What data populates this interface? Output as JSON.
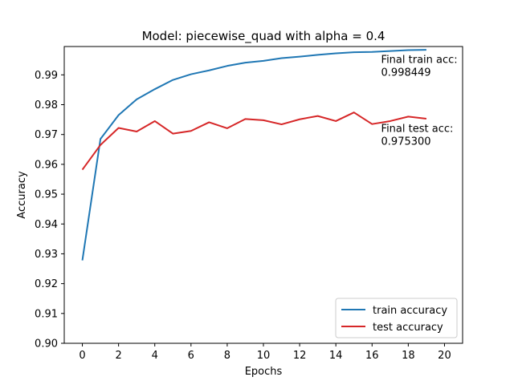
{
  "chart_data": {
    "type": "line",
    "title": "Model: piecewise_quad with alpha = 0.4",
    "xlabel": "Epochs",
    "ylabel": "Accuracy",
    "xlim": [
      -1,
      21
    ],
    "ylim": [
      0.9,
      0.9995
    ],
    "xticks": [
      0,
      2,
      4,
      6,
      8,
      10,
      12,
      14,
      16,
      18,
      20
    ],
    "yticks": [
      0.9,
      0.91,
      0.92,
      0.93,
      0.94,
      0.95,
      0.96,
      0.97,
      0.98,
      0.99
    ],
    "grid": false,
    "legend_position": "lower-right",
    "x": [
      0,
      1,
      2,
      3,
      4,
      5,
      6,
      7,
      8,
      9,
      10,
      11,
      12,
      13,
      14,
      15,
      16,
      17,
      18,
      19
    ],
    "series": [
      {
        "name": "train accuracy",
        "color": "#1f77b4",
        "values": [
          0.9278,
          0.9685,
          0.9765,
          0.9818,
          0.9852,
          0.9883,
          0.9902,
          0.9915,
          0.993,
          0.9941,
          0.9947,
          0.9956,
          0.9961,
          0.9967,
          0.9972,
          0.9976,
          0.9977,
          0.998,
          0.9983,
          0.9984
        ]
      },
      {
        "name": "test accuracy",
        "color": "#d62728",
        "values": [
          0.9582,
          0.9665,
          0.9722,
          0.971,
          0.9745,
          0.9703,
          0.9712,
          0.9741,
          0.9721,
          0.9752,
          0.9748,
          0.9734,
          0.9751,
          0.9762,
          0.9745,
          0.9774,
          0.9735,
          0.9745,
          0.976,
          0.9753
        ]
      }
    ],
    "annotations": [
      {
        "id": "train",
        "line1": "Final train acc:",
        "line2": "0.998449",
        "x": 16.5,
        "y": 0.9915
      },
      {
        "id": "test",
        "line1": "Final test acc:",
        "line2": "0.975300",
        "x": 16.5,
        "y": 0.9685
      }
    ]
  }
}
